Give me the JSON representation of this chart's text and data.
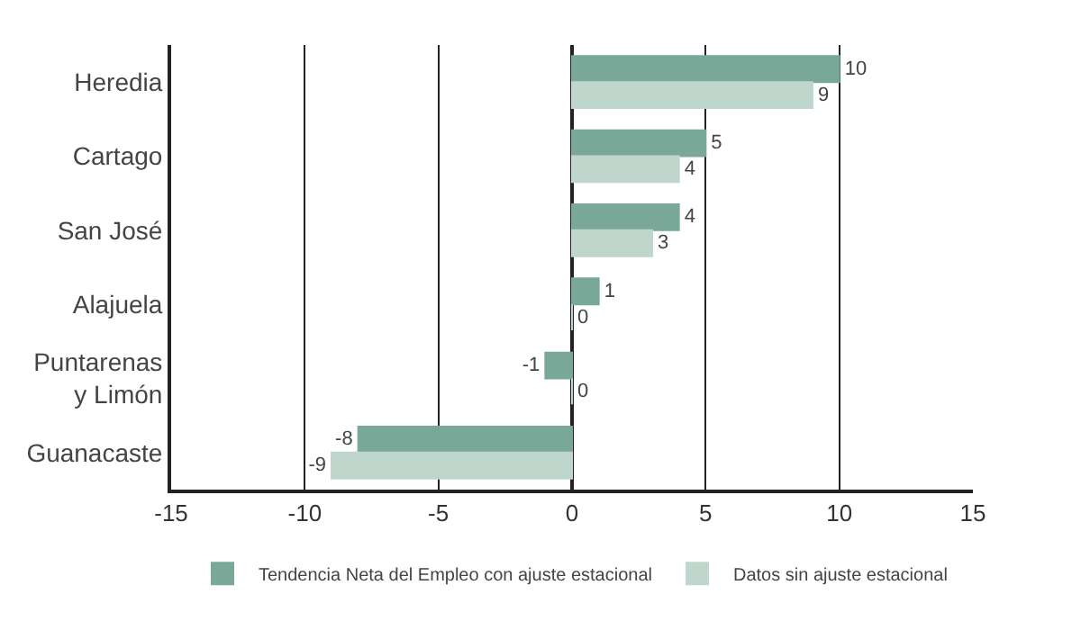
{
  "chart_data": {
    "type": "bar",
    "orientation": "horizontal",
    "categories": [
      "Heredia",
      "Cartago",
      "San José",
      "Alajuela",
      "Puntarenas\ny Limón",
      "Guanacaste"
    ],
    "series": [
      {
        "name": "Tendencia Neta del Empleo con ajuste estacional",
        "color": "#7aa898",
        "values": [
          10,
          5,
          4,
          1,
          -1,
          -8
        ]
      },
      {
        "name": "Datos sin ajuste estacional",
        "color": "#bfd6cc",
        "values": [
          9,
          4,
          3,
          0,
          0,
          -9
        ]
      }
    ],
    "xlim": [
      -15,
      15
    ],
    "xticks": [
      -15,
      -10,
      -5,
      0,
      5,
      10,
      15
    ],
    "grid": "x",
    "legend": "bottom",
    "data_labels": true
  }
}
